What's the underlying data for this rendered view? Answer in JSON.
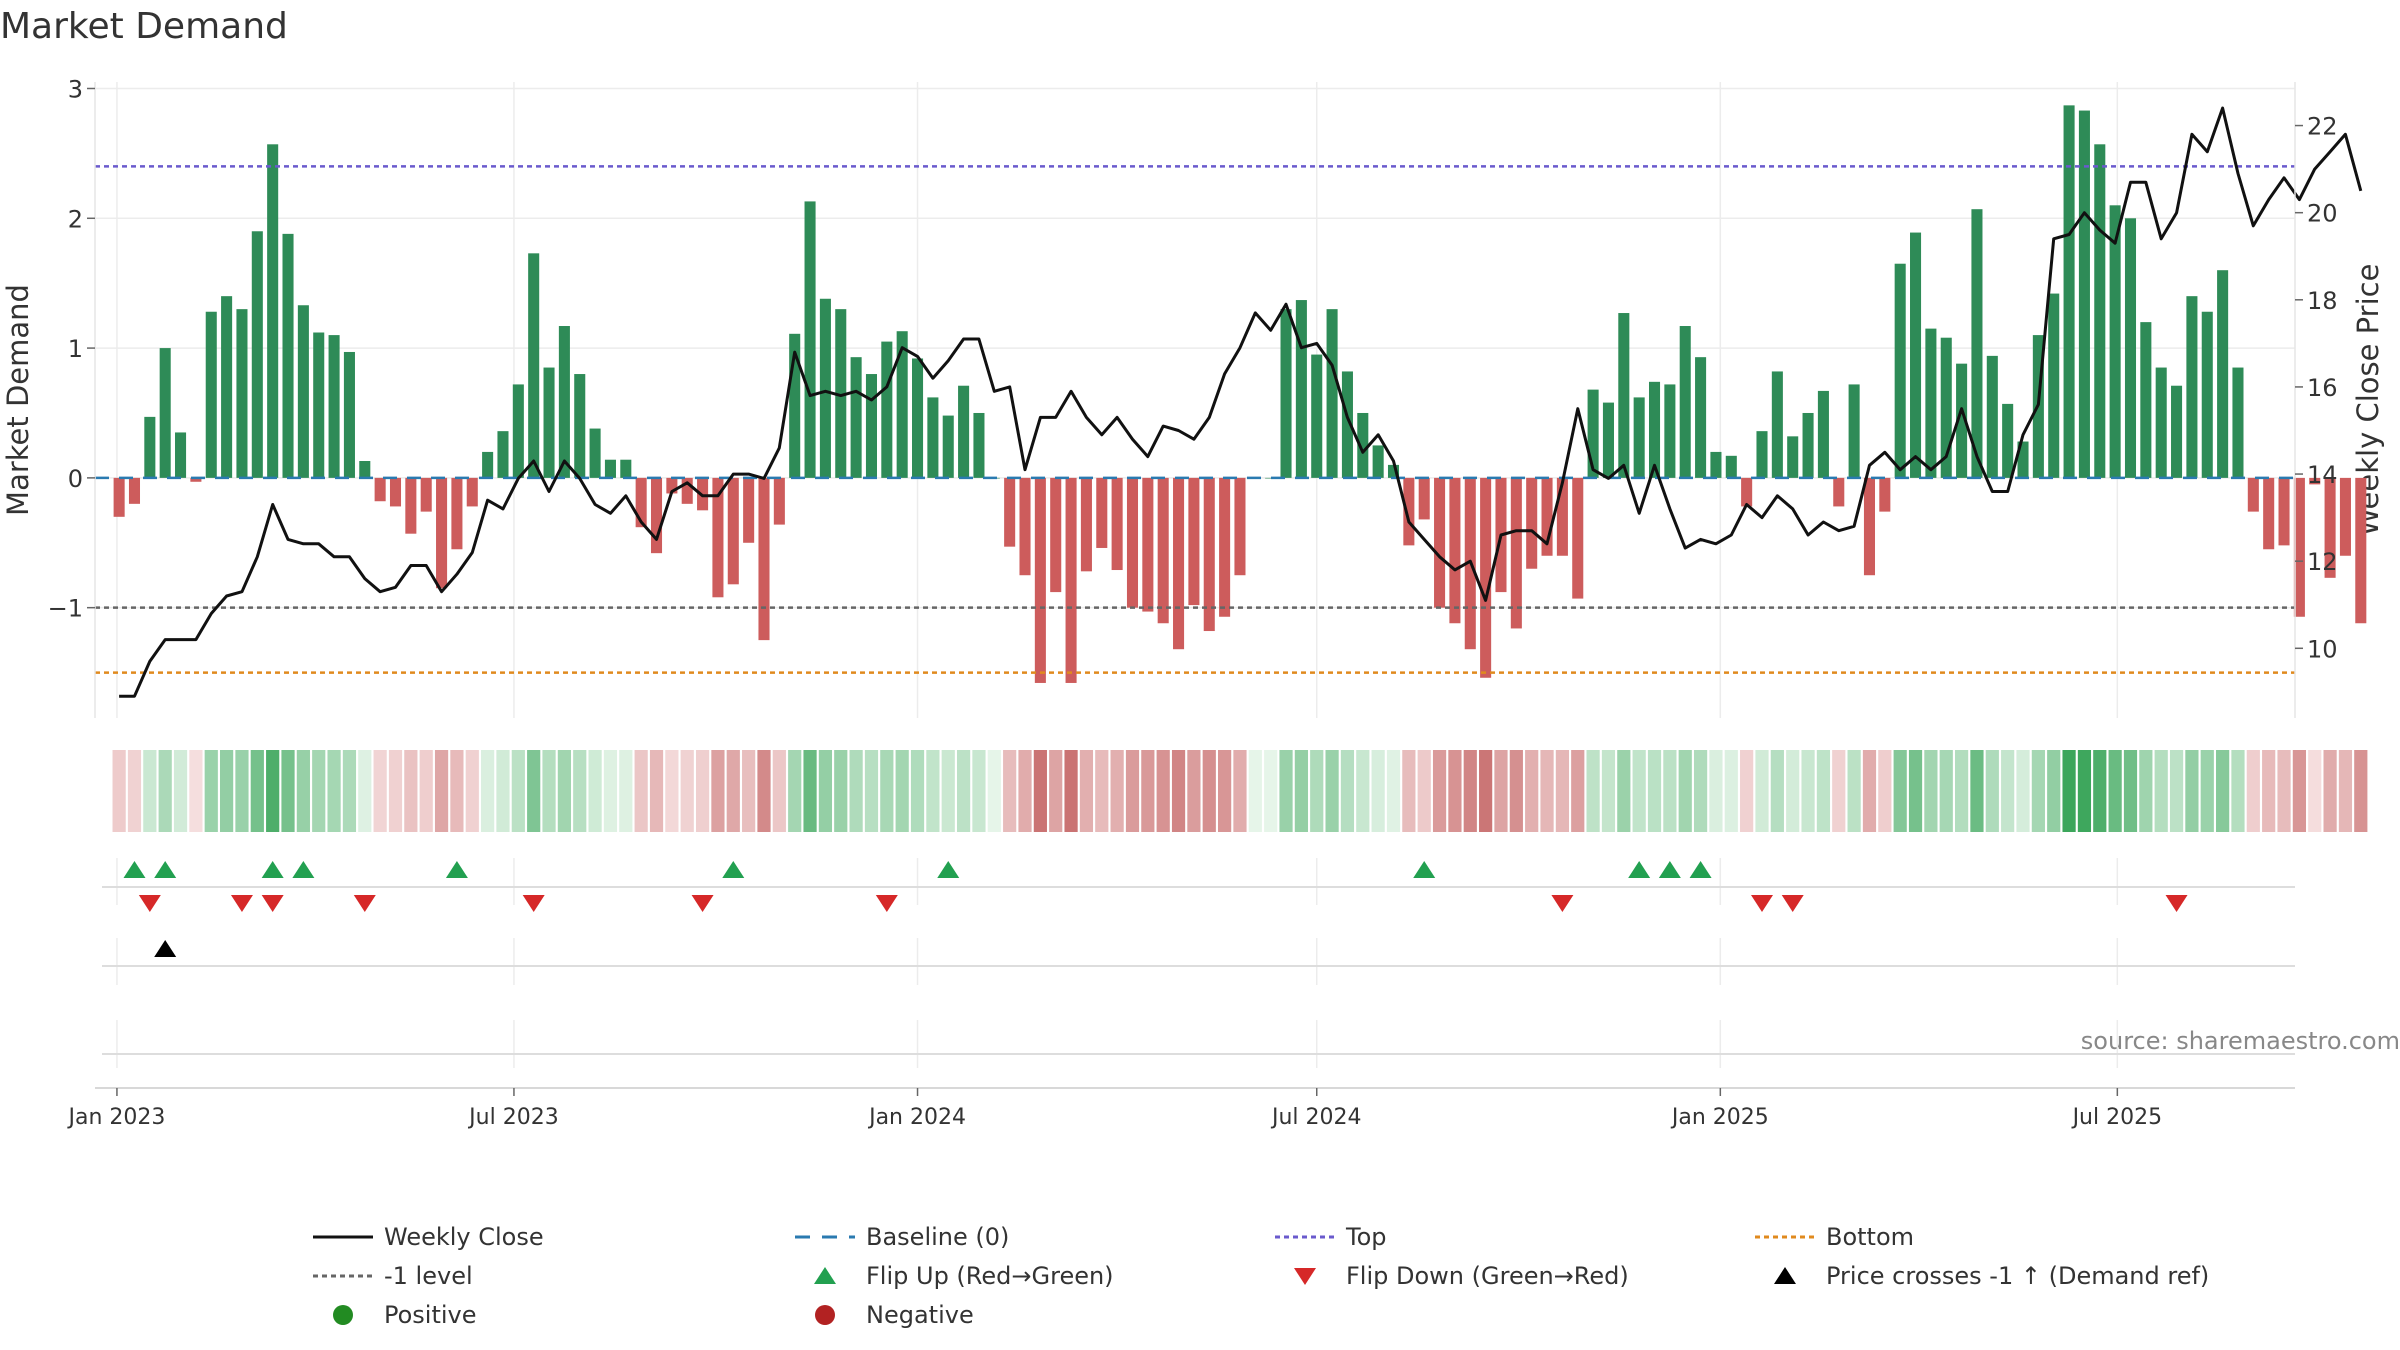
{
  "chart_data": {
    "type": "bar",
    "title": "Market Demand",
    "ylabel_left": "Market Demand",
    "ylabel_right": "Weekly Close Price",
    "source": "source: sharemaestro.com",
    "x_start": "2023-01-02",
    "x_range": [
      "2022-12-22",
      "2025-09-20"
    ],
    "x_ticks": [
      {
        "date": "2023-01-01",
        "label": "Jan 2023"
      },
      {
        "date": "2023-07-01",
        "label": "Jul 2023"
      },
      {
        "date": "2024-01-01",
        "label": "Jan 2024"
      },
      {
        "date": "2024-07-01",
        "label": "Jul 2024"
      },
      {
        "date": "2025-01-01",
        "label": "Jan 2025"
      },
      {
        "date": "2025-07-01",
        "label": "Jul 2025"
      }
    ],
    "left_axis": {
      "ylim": [
        -1.85,
        3.05
      ],
      "ticks": [
        3,
        2,
        1,
        0,
        -1
      ],
      "tick_labels": [
        "3",
        "2",
        "1",
        "0",
        "−1"
      ]
    },
    "right_axis": {
      "ylim": [
        8.4,
        23.0
      ],
      "ticks": [
        22,
        20,
        18,
        16,
        14,
        12,
        10
      ],
      "tick_labels": [
        "22",
        "20",
        "18",
        "16",
        "14",
        "12",
        "10"
      ]
    },
    "reference_lines": {
      "top": 2.4,
      "level_minus1": -1.0,
      "bottom": -1.5,
      "baseline": 0
    },
    "colors": {
      "positive": "#2e8b57",
      "negative": "#cd5c5c",
      "close": "#111111",
      "top": "#6a5acd",
      "bottom": "#e08a1e",
      "level": "#666666",
      "baseline": "#2a7ab0",
      "flip_up": "#22a050",
      "flip_down": "#d62828",
      "cross": "#000000",
      "legend_positive": "#228b22",
      "legend_negative": "#b22222"
    },
    "demand": [
      -0.3,
      -0.2,
      0.47,
      1.0,
      0.35,
      -0.03,
      1.28,
      1.4,
      1.3,
      1.9,
      2.57,
      1.88,
      1.33,
      1.12,
      1.1,
      0.97,
      0.13,
      -0.18,
      -0.22,
      -0.43,
      -0.26,
      -0.85,
      -0.55,
      -0.22,
      0.2,
      0.36,
      0.72,
      1.73,
      0.85,
      1.17,
      0.8,
      0.38,
      0.14,
      0.14,
      -0.38,
      -0.58,
      -0.12,
      -0.2,
      -0.25,
      -0.92,
      -0.82,
      -0.5,
      -1.25,
      -0.36,
      1.11,
      2.13,
      1.38,
      1.3,
      0.93,
      0.8,
      1.05,
      1.13,
      0.92,
      0.62,
      0.48,
      0.71,
      0.5,
      0,
      -0.53,
      -0.75,
      -1.58,
      -0.88,
      -1.58,
      -0.72,
      -0.54,
      -0.71,
      -1.0,
      -1.03,
      -1.12,
      -1.32,
      -0.98,
      -1.18,
      -1.07,
      -0.75,
      0,
      0,
      1.3,
      1.37,
      0.95,
      1.3,
      0.82,
      0.5,
      0.25,
      0.1,
      -0.52,
      -0.32,
      -1.0,
      -1.12,
      -1.32,
      -1.54,
      -0.88,
      -1.16,
      -0.7,
      -0.6,
      -0.6,
      -0.93,
      0.68,
      0.58,
      1.27,
      0.62,
      0.74,
      0.72,
      1.17,
      0.93,
      0.2,
      0.17,
      -0.22,
      0.36,
      0.82,
      0.32,
      0.5,
      0.67,
      -0.22,
      0.72,
      -0.75,
      -0.26,
      1.65,
      1.89,
      1.15,
      1.08,
      0.88,
      2.07,
      0.94,
      0.57,
      0.28,
      1.1,
      1.42,
      2.87,
      2.83,
      2.57,
      2.1,
      2.0,
      1.2,
      0.85,
      0.71,
      1.4,
      1.28,
      1.6,
      0.85,
      -0.26,
      -0.55,
      -0.52,
      -1.07,
      -0.05,
      -0.77,
      -0.6,
      -1.12
    ],
    "close": [
      8.9,
      8.9,
      9.7,
      10.2,
      10.2,
      10.2,
      10.8,
      11.2,
      11.3,
      12.1,
      13.3,
      12.5,
      12.4,
      12.4,
      12.1,
      12.1,
      11.6,
      11.3,
      11.4,
      11.9,
      11.9,
      11.3,
      11.7,
      12.2,
      13.4,
      13.2,
      13.9,
      14.3,
      13.6,
      14.3,
      13.9,
      13.3,
      13.1,
      13.5,
      12.9,
      12.5,
      13.6,
      13.8,
      13.5,
      13.5,
      14.0,
      14.0,
      13.9,
      14.6,
      16.8,
      15.8,
      15.9,
      15.8,
      15.9,
      15.7,
      16.0,
      16.9,
      16.7,
      16.2,
      16.6,
      17.1,
      17.1,
      15.9,
      16.0,
      14.1,
      15.3,
      15.3,
      15.9,
      15.3,
      14.9,
      15.3,
      14.8,
      14.4,
      15.1,
      15.0,
      14.8,
      15.3,
      16.3,
      16.9,
      17.7,
      17.3,
      17.9,
      16.9,
      17.0,
      16.5,
      15.3,
      14.5,
      14.9,
      14.3,
      12.9,
      12.5,
      12.1,
      11.8,
      12.0,
      11.1,
      12.6,
      12.7,
      12.7,
      12.4,
      13.8,
      15.5,
      14.1,
      13.9,
      14.2,
      13.1,
      14.2,
      13.2,
      12.3,
      12.5,
      12.4,
      12.6,
      13.3,
      13.0,
      13.5,
      13.2,
      12.6,
      12.9,
      12.7,
      12.8,
      14.2,
      14.5,
      14.1,
      14.4,
      14.1,
      14.4,
      15.5,
      14.4,
      13.6,
      13.6,
      14.9,
      15.6,
      19.4,
      19.5,
      20.0,
      19.6,
      19.3,
      20.7,
      20.7,
      19.4,
      20.0,
      21.8,
      21.4,
      22.4,
      20.9,
      19.7,
      20.3,
      20.8,
      20.3,
      21.0,
      21.4,
      21.8,
      20.5
    ],
    "signals": {
      "flip_up": [
        1,
        3,
        10,
        12,
        22,
        40,
        54,
        85,
        99,
        101,
        103
      ],
      "flip_down": [
        2,
        8,
        10,
        16,
        27,
        38,
        50,
        94,
        107,
        109,
        134
      ],
      "price_cross": [
        3
      ]
    },
    "legend": [
      {
        "label": "Weekly Close",
        "marker": "line"
      },
      {
        "label": "Baseline (0)",
        "marker": "dash"
      },
      {
        "label": "Top",
        "marker": "dot-blue"
      },
      {
        "label": "Bottom",
        "marker": "dot-orange"
      },
      {
        "label": "-1 level",
        "marker": "dot-gray"
      },
      {
        "label": "Flip Up (Red→Green)",
        "marker": "tri-up-green"
      },
      {
        "label": "Flip Down (Green→Red)",
        "marker": "tri-down-red"
      },
      {
        "label": "Price crosses -1 ↑ (Demand ref)",
        "marker": "tri-up-black"
      },
      {
        "label": "Positive",
        "marker": "circle-green"
      },
      {
        "label": "Negative",
        "marker": "circle-red"
      }
    ]
  }
}
